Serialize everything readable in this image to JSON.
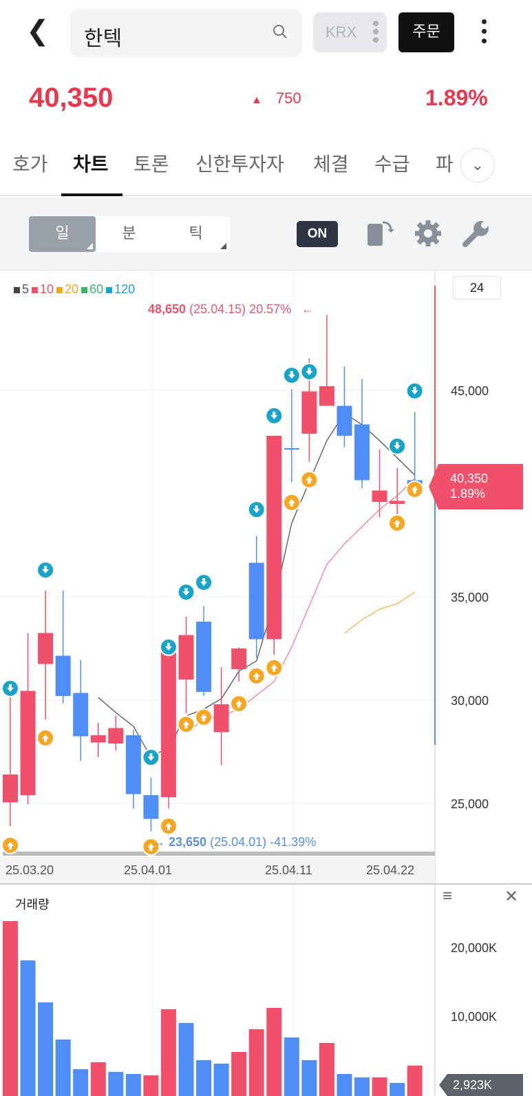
{
  "header": {
    "stock_name": "한텍",
    "market": "KRX",
    "order_label": "주문"
  },
  "quote": {
    "price": "40,350",
    "change": "750",
    "change_pct": "1.89%",
    "up_color": "#e8384f"
  },
  "tabs": [
    {
      "label": "호가"
    },
    {
      "label": "차트",
      "active": true
    },
    {
      "label": "토론"
    },
    {
      "label": "신한투자자"
    },
    {
      "label": "체결"
    },
    {
      "label": "수급"
    },
    {
      "label": "파"
    }
  ],
  "toolbar": {
    "periods": [
      {
        "label": "일",
        "active": true
      },
      {
        "label": "분"
      },
      {
        "label": "틱"
      }
    ],
    "toggle_label": "ON"
  },
  "legend": [
    {
      "label": "5",
      "color": "#444444"
    },
    {
      "label": "10",
      "color": "#f0506a"
    },
    {
      "label": "20",
      "color": "#f5a623"
    },
    {
      "label": "60",
      "color": "#3cb371"
    },
    {
      "label": "120",
      "color": "#1aa3c8"
    }
  ],
  "candle_count": "24",
  "max_label": {
    "price": "48,650",
    "rest": "(25.04.15) 20.57%"
  },
  "min_label": {
    "price": "23,650",
    "rest": "(25.04.01) -41.39%"
  },
  "current_label": {
    "price": "40,350",
    "pct": "1.89%"
  },
  "date_labels": [
    "25.03.20",
    "25.04.01",
    "25.04.11",
    "25.04.22"
  ],
  "volume": {
    "title": "거래량",
    "y_labels": [
      "20,000K",
      "10,000K"
    ],
    "current": "2,923K"
  },
  "chart_data": {
    "type": "candlestick",
    "y_ticks": [
      "45,000",
      "35,000",
      "30,000",
      "25,000"
    ],
    "y_tick_values": [
      45000,
      35000,
      30000,
      25000
    ],
    "candles": [
      [
        25050,
        30450,
        23900,
        26400
      ],
      [
        25400,
        33250,
        24950,
        30450
      ],
      [
        31750,
        35300,
        29050,
        33250
      ],
      [
        32150,
        35300,
        29850,
        30200
      ],
      [
        30350,
        31950,
        27050,
        28250
      ],
      [
        27950,
        28900,
        27250,
        28300
      ],
      [
        27900,
        29250,
        27550,
        28650
      ],
      [
        28300,
        28550,
        24750,
        25450
      ],
      [
        25400,
        26250,
        23650,
        24250
      ],
      [
        25300,
        32400,
        24750,
        32400
      ],
      [
        31000,
        34050,
        29350,
        33150
      ],
      [
        33800,
        34550,
        30200,
        30400
      ],
      [
        28450,
        31600,
        26850,
        29800
      ],
      [
        31500,
        32550,
        30900,
        32500
      ],
      [
        36650,
        37950,
        32050,
        32950
      ],
      [
        32950,
        42800,
        32200,
        42800
      ],
      [
        42200,
        45050,
        40550,
        42150
      ],
      [
        42900,
        46550,
        41550,
        44950
      ],
      [
        44250,
        48650,
        44250,
        45200
      ],
      [
        44250,
        46150,
        42250,
        42800
      ],
      [
        43350,
        45550,
        40250,
        40650
      ],
      [
        39600,
        42150,
        38850,
        40150
      ],
      [
        39500,
        41250,
        38650,
        39650
      ],
      [
        40650,
        43950,
        40250,
        40350
      ]
    ],
    "ma5": [
      null,
      null,
      null,
      null,
      null,
      30133,
      29400,
      28733,
      27233,
      27733,
      29233,
      29567,
      30067,
      31400,
      31900,
      34733,
      38567,
      40567,
      42567,
      43900,
      43333,
      42567,
      41733,
      40900
    ],
    "ma10": [
      null,
      null,
      null,
      null,
      null,
      null,
      null,
      null,
      null,
      null,
      28400,
      29067,
      29233,
      29567,
      30233,
      30900,
      32567,
      34567,
      36567,
      37567,
      38400,
      39233,
      39900,
      40733
    ],
    "ma20": [
      null,
      null,
      null,
      null,
      null,
      null,
      null,
      null,
      null,
      null,
      null,
      null,
      null,
      null,
      null,
      null,
      null,
      null,
      null,
      33233,
      33900,
      34400,
      34667,
      35233
    ],
    "signals_down": [
      [
        0,
        30570
      ],
      [
        2,
        36300
      ],
      [
        8,
        27230
      ],
      [
        9,
        32570
      ],
      [
        10,
        35230
      ],
      [
        11,
        35700
      ],
      [
        14,
        39230
      ],
      [
        15,
        43770
      ],
      [
        16,
        45730
      ],
      [
        17,
        45900
      ],
      [
        22,
        42300
      ],
      [
        23,
        44970
      ]
    ],
    "signals_up": [
      [
        0,
        22970
      ],
      [
        2,
        28170
      ],
      [
        8,
        22900
      ],
      [
        9,
        23900
      ],
      [
        10,
        28830
      ],
      [
        11,
        29170
      ],
      [
        13,
        29830
      ],
      [
        14,
        31170
      ],
      [
        15,
        31570
      ],
      [
        16,
        39570
      ],
      [
        17,
        40670
      ],
      [
        22,
        38570
      ],
      [
        23,
        40200
      ]
    ],
    "volume_k": [
      23900,
      18200,
      12100,
      6700,
      2400,
      3400,
      2000,
      1700,
      1500,
      11100,
      9100,
      3700,
      3200,
      4900,
      8200,
      11300,
      7000,
      3700,
      6200,
      1700,
      1200,
      1200,
      400,
      2923
    ],
    "volume_up": [
      true,
      false,
      false,
      false,
      false,
      true,
      false,
      false,
      true,
      true,
      false,
      false,
      false,
      true,
      true,
      true,
      false,
      false,
      true,
      false,
      false,
      true,
      false,
      true
    ]
  }
}
